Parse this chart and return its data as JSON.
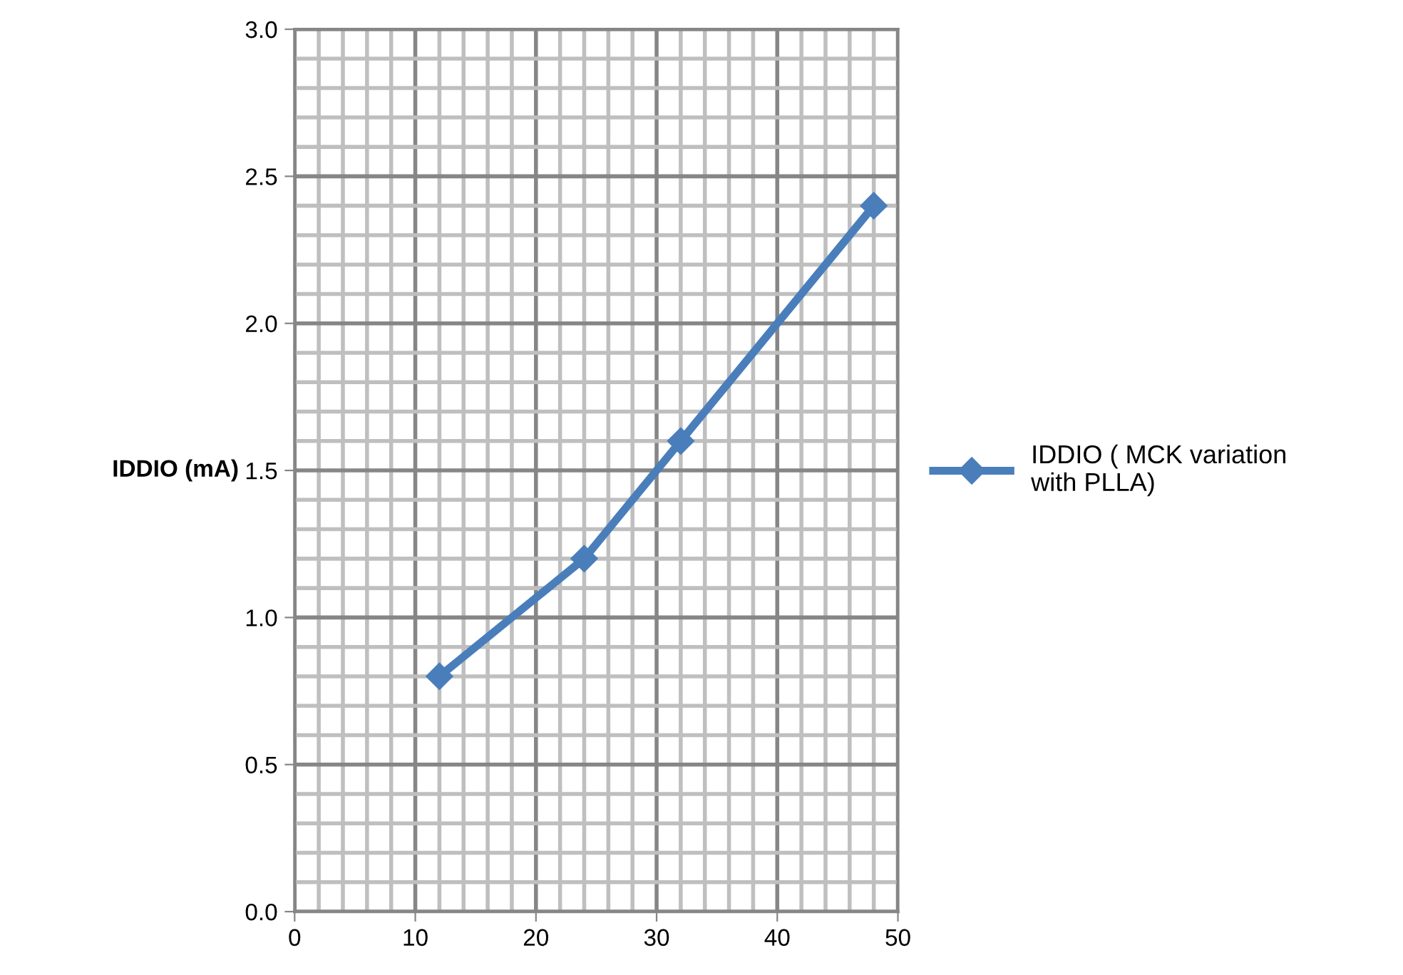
{
  "chart_data": {
    "type": "line",
    "ylabel": "IDDIO (mA)",
    "x": [
      12,
      24,
      32,
      48
    ],
    "series": [
      {
        "name": "IDDIO ( MCK variation with PLLA)",
        "color": "#4a7ebb",
        "values": [
          0.8,
          1.2,
          1.6,
          2.4
        ]
      }
    ],
    "xlim": [
      0,
      50
    ],
    "xticks": [
      0,
      10,
      20,
      30,
      40,
      50
    ],
    "ylim": [
      0,
      3
    ],
    "yticks": [
      {
        "value": 0,
        "label": "0.0"
      },
      {
        "value": 0.5,
        "label": "0.5"
      },
      {
        "value": 1,
        "label": "1.0"
      },
      {
        "value": 1.5,
        "label": "1.5"
      },
      {
        "value": 2,
        "label": "2.0"
      },
      {
        "value": 2.5,
        "label": "2.5"
      },
      {
        "value": 3,
        "label": "3.0"
      }
    ],
    "grid": true,
    "legend": "right",
    "marker": "diamond",
    "line_style": "solid"
  }
}
